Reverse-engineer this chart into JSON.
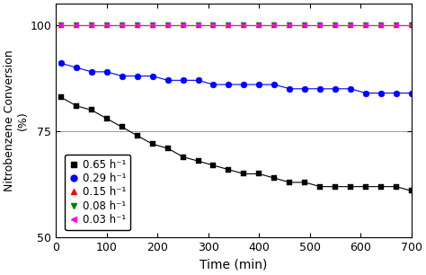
{
  "title": "",
  "xlabel": "Time (min)",
  "ylabel": "Nitrobenzene Conversion\n(%)",
  "xlim": [
    0,
    700
  ],
  "ylim": [
    50,
    105
  ],
  "yticks": [
    50,
    75,
    100
  ],
  "xticks": [
    0,
    100,
    200,
    300,
    400,
    500,
    600,
    700
  ],
  "series": {
    "black_squares": {
      "label": "0.65 h⁻¹",
      "color": "black",
      "marker": "s",
      "markersize": 4,
      "x": [
        10,
        40,
        70,
        100,
        130,
        160,
        190,
        220,
        250,
        280,
        310,
        340,
        370,
        400,
        430,
        460,
        490,
        520,
        550,
        580,
        610,
        640,
        670,
        700
      ],
      "y": [
        83,
        81,
        80,
        78,
        76,
        74,
        72,
        71,
        69,
        68,
        67,
        66,
        65,
        65,
        64,
        63,
        63,
        62,
        62,
        62,
        62,
        62,
        62,
        61
      ]
    },
    "blue_circles": {
      "label": "0.29 h⁻¹",
      "color": "blue",
      "marker": "o",
      "markersize": 5,
      "x": [
        10,
        40,
        70,
        100,
        130,
        160,
        190,
        220,
        250,
        280,
        310,
        340,
        370,
        400,
        430,
        460,
        490,
        520,
        550,
        580,
        610,
        640,
        670,
        700
      ],
      "y": [
        91,
        90,
        89,
        89,
        88,
        88,
        88,
        87,
        87,
        87,
        86,
        86,
        86,
        86,
        86,
        85,
        85,
        85,
        85,
        85,
        84,
        84,
        84,
        84
      ]
    },
    "red_triangles_up": {
      "label": "0.15 h⁻¹",
      "color": "red",
      "marker": "^",
      "markersize": 5,
      "x": [
        10,
        40,
        70,
        100,
        130,
        160,
        190,
        220,
        250,
        280,
        310,
        340,
        370,
        400,
        430,
        460,
        490,
        520,
        550,
        580,
        610,
        640,
        670,
        700
      ],
      "y": [
        100,
        100,
        100,
        100,
        100,
        100,
        100,
        100,
        100,
        100,
        100,
        100,
        100,
        100,
        100,
        100,
        100,
        100,
        100,
        100,
        100,
        100,
        100,
        100
      ]
    },
    "green_triangles_down": {
      "label": "0.08 h⁻¹",
      "color": "green",
      "marker": "v",
      "markersize": 5,
      "x": [
        10,
        40,
        70,
        100,
        130,
        160,
        190,
        220,
        250,
        280,
        310,
        340,
        370,
        400,
        430,
        460,
        490,
        520,
        550,
        580,
        610,
        640,
        670,
        700
      ],
      "y": [
        100,
        100,
        100,
        100,
        100,
        100,
        100,
        100,
        100,
        100,
        100,
        100,
        100,
        100,
        100,
        100,
        100,
        100,
        100,
        100,
        100,
        100,
        100,
        100
      ]
    },
    "magenta_triangles_left": {
      "label": "0.03 h⁻¹",
      "color": "magenta",
      "marker": "<",
      "markersize": 5,
      "x": [
        10,
        40,
        70,
        100,
        130,
        160,
        190,
        220,
        250,
        280,
        310,
        340,
        370,
        400,
        430,
        460,
        490,
        520,
        550,
        580,
        610,
        640,
        670,
        700
      ],
      "y": [
        100,
        100,
        100,
        100,
        100,
        100,
        100,
        100,
        100,
        100,
        100,
        100,
        100,
        100,
        100,
        100,
        100,
        100,
        100,
        100,
        100,
        100,
        100,
        100
      ]
    }
  },
  "legend_loc": "lower left",
  "background_color": "#ffffff",
  "grid_color": "#999999",
  "grid_linewidth": 0.7,
  "font_size": 9,
  "label_fontsize": 10,
  "line_color": "#aaaaaa",
  "line_linewidth": 0.8
}
